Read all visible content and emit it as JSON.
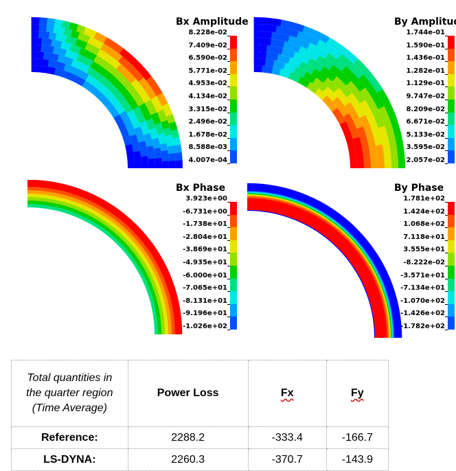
{
  "plots": [
    {
      "title": "Bx  Amplitude",
      "labels": [
        "8.228e-02",
        "7.409e-02",
        "6.590e-02",
        "5.771e-02",
        "4.953e-02",
        "4.134e-02",
        "3.315e-02",
        "2.496e-02",
        "1.678e-02",
        "8.588e-03",
        "4.007e-04"
      ]
    },
    {
      "title": "By  Amplitude",
      "labels": [
        "1.744e-01",
        "1.590e-01",
        "1.436e-01",
        "1.282e-01",
        "1.129e-01",
        "9.747e-02",
        "8.209e-02",
        "6.671e-02",
        "5.133e-02",
        "3.595e-02",
        "2.057e-02"
      ]
    },
    {
      "title": "Bx  Phase",
      "labels": [
        "3.923e+00",
        "-6.731e+00",
        "-1.738e+01",
        "-2.804e+01",
        "-3.869e+01",
        "-4.935e+01",
        "-6.000e+01",
        "-7.065e+01",
        "-8.131e+01",
        "-9.196e+01",
        "-1.026e+02"
      ]
    },
    {
      "title": "By  Phase",
      "labels": [
        "1.781e+02",
        "1.424e+02",
        "1.068e+02",
        "7.118e+01",
        "3.555e+01",
        "-8.222e-02",
        "-3.571e+01",
        "-7.134e+01",
        "-1.070e+02",
        "-1.426e+02",
        "-1.782e+02"
      ]
    }
  ],
  "colormap": [
    "#0000ff",
    "#0050ff",
    "#00a0ff",
    "#00e6e6",
    "#00e080",
    "#00d000",
    "#90e000",
    "#e6e600",
    "#ffa000",
    "#ff5000",
    "#ff0000"
  ],
  "table": {
    "header_label_lines": [
      "Total quantities in",
      "the quarter region",
      "(Time Average)"
    ],
    "columns": [
      "Power Loss",
      "Fx",
      "Fy"
    ],
    "rows": [
      {
        "label": "Reference:",
        "values": [
          "2288.2",
          "-333.4",
          "-166.7"
        ]
      },
      {
        "label": "LS-DYNA:",
        "values": [
          "2260.3",
          "-370.7",
          "-143.9"
        ]
      }
    ]
  }
}
